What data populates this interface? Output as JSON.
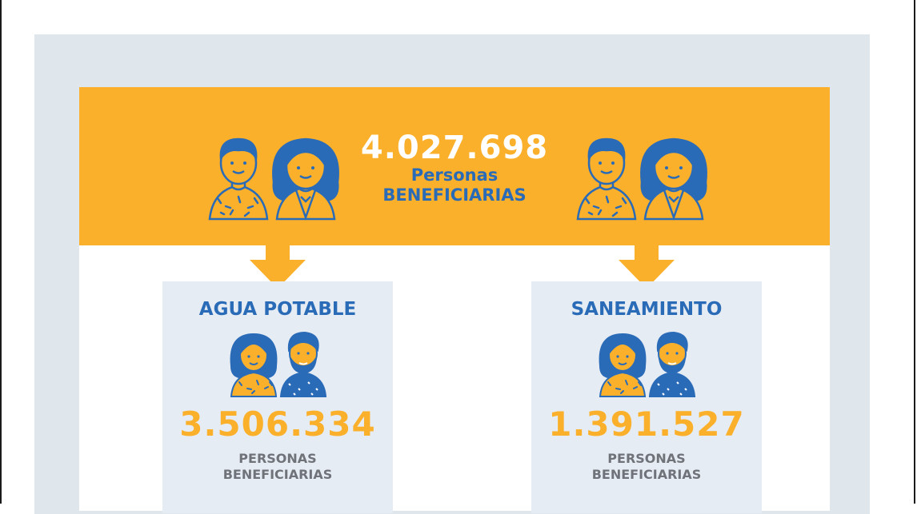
{
  "total": {
    "value": "4.027.698",
    "label_line1": "Personas",
    "label_line2": "BENEFICIARIAS"
  },
  "cards": [
    {
      "title": "AGUA POTABLE",
      "value": "3.506.334",
      "label_line1": "PERSONAS",
      "label_line2": "BENEFICIARIAS"
    },
    {
      "title": "SANEAMIENTO",
      "value": "1.391.527",
      "label_line1": "PERSONAS",
      "label_line2": "BENEFICIARIAS"
    }
  ],
  "colors": {
    "accent_orange": "#fbb02b",
    "accent_blue": "#2a6bb8",
    "panel_gray": "#dfe6ec",
    "card_bg": "#e6ecf3",
    "label_gray": "#6f7278"
  },
  "icons": [
    "people-group-icon",
    "arrow-down-icon"
  ]
}
